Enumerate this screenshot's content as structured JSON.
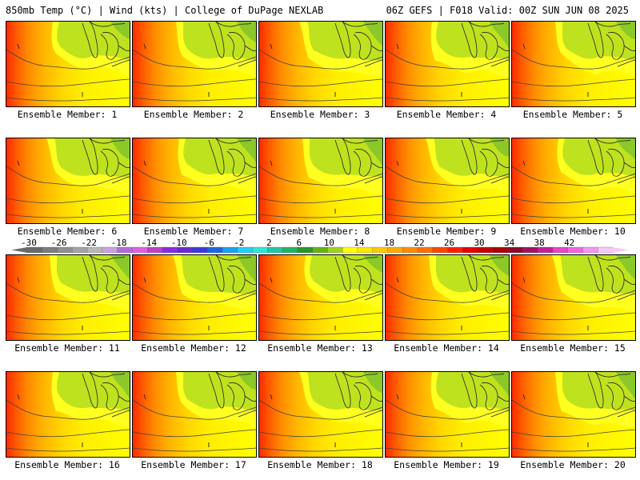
{
  "header": {
    "left_title": "850mb Temp (°C) | Wind (kts) | College of DuPage NEXLAB",
    "right_title": "06Z GEFS | F018 Valid: 00Z SUN JUN 08 2025"
  },
  "panels": [
    {
      "label": "Ensemble Member: 1"
    },
    {
      "label": "Ensemble Member: 2"
    },
    {
      "label": "Ensemble Member: 3"
    },
    {
      "label": "Ensemble Member: 4"
    },
    {
      "label": "Ensemble Member: 5"
    },
    {
      "label": "Ensemble Member: 6"
    },
    {
      "label": "Ensemble Member: 7"
    },
    {
      "label": "Ensemble Member: 8"
    },
    {
      "label": "Ensemble Member: 9"
    },
    {
      "label": "Ensemble Member: 10"
    },
    {
      "label": "Ensemble Member: 11"
    },
    {
      "label": "Ensemble Member: 12"
    },
    {
      "label": "Ensemble Member: 13"
    },
    {
      "label": "Ensemble Member: 14"
    },
    {
      "label": "Ensemble Member: 15"
    },
    {
      "label": "Ensemble Member: 16"
    },
    {
      "label": "Ensemble Member: 17"
    },
    {
      "label": "Ensemble Member: 18"
    },
    {
      "label": "Ensemble Member: 19"
    },
    {
      "label": "Ensemble Member: 20"
    }
  ],
  "colorbar": {
    "tick_labels": [
      "-30",
      "-26",
      "-22",
      "-18",
      "-14",
      "-10",
      "-6",
      "-2",
      "2",
      "6",
      "10",
      "14",
      "18",
      "22",
      "26",
      "30",
      "34",
      "38",
      "42"
    ],
    "colors": [
      "#6b6b6b",
      "#7d7d7d",
      "#8f8f8f",
      "#a3a3a3",
      "#b8b8b8",
      "#c8a2dc",
      "#b36ad6",
      "#e060e0",
      "#c040c8",
      "#8a2be2",
      "#6a2ad0",
      "#3a3adc",
      "#1e64e6",
      "#1ea0f0",
      "#1ed2f5",
      "#2ee6d2",
      "#22c8a0",
      "#20b464",
      "#289628",
      "#64b414",
      "#a0d21e",
      "#ffff00",
      "#ffe600",
      "#ffc800",
      "#ffaa00",
      "#ff8c00",
      "#ff6e00",
      "#ff4600",
      "#ff1e00",
      "#e60000",
      "#c80000",
      "#aa0000",
      "#8c0a2a",
      "#a01464",
      "#c81e96",
      "#e646c8",
      "#f064e6",
      "#f596f0",
      "#f8c8f8"
    ]
  }
}
